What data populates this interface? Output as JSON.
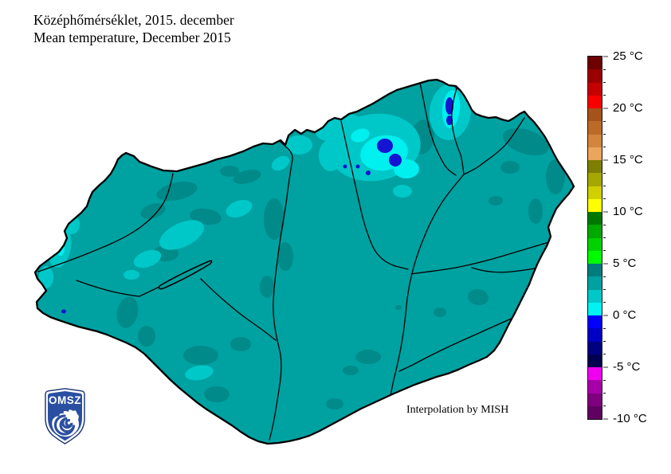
{
  "title": {
    "line1": "Középhőmérséklet, 2015. december",
    "line2": "Mean temperature, December 2015"
  },
  "map": {
    "region": "Hungary",
    "annotation": "Interpolation by MISH",
    "colors": {
      "base": "#00A1A1",
      "warmer": "#008A8A",
      "colder": "#00C8C8",
      "cold": "#00EFEF",
      "frost": "#1414D2",
      "border": "#000000",
      "river": "#000000"
    }
  },
  "colorbar": {
    "unit": "°C",
    "min": -10,
    "max": 25,
    "step_per_segment": 1.25,
    "tick_labels": [
      "25 °C",
      "20 °C",
      "15 °C",
      "10 °C",
      "5 °C",
      "0 °C",
      "-5 °C",
      "-10 °C"
    ],
    "segments_top_to_bottom": [
      "#6E0000",
      "#9B0000",
      "#C60000",
      "#F80000",
      "#A5521B",
      "#BC6A28",
      "#D1853E",
      "#EBA55C",
      "#7E7E00",
      "#A6A600",
      "#D0D000",
      "#FFFF00",
      "#007800",
      "#00A800",
      "#00D200",
      "#00FB00",
      "#007D7D",
      "#00A1A1",
      "#00C8C8",
      "#00F2F2",
      "#0000FB",
      "#0000C4",
      "#000080",
      "#000050",
      "#F000F0",
      "#A800A8",
      "#7E007E",
      "#600060"
    ]
  },
  "logo": {
    "text": "OMSZ",
    "shield_color": "#2B4FA0"
  }
}
